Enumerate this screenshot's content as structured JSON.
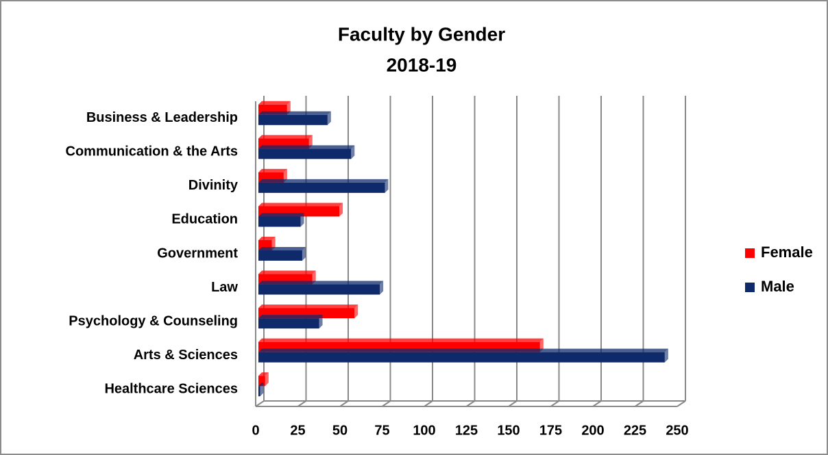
{
  "chart_data": {
    "type": "bar",
    "orientation": "horizontal",
    "title": "Faculty by Gender",
    "subtitle": "2018-19",
    "categories": [
      "Business & Leadership",
      "Communication & the Arts",
      "Divinity",
      "Education",
      "Government",
      "Law",
      "Psychology & Counseling",
      "Arts & Sciences",
      "Healthcare Sciences"
    ],
    "series": [
      {
        "name": "Female",
        "color": "#ff0000",
        "values": [
          17,
          30,
          15,
          48,
          8,
          32,
          57,
          167,
          4
        ]
      },
      {
        "name": "Male",
        "color": "#0f2a6b",
        "values": [
          41,
          55,
          75,
          25,
          26,
          72,
          36,
          241,
          1
        ]
      }
    ],
    "xlim": [
      0,
      250
    ],
    "xticks": [
      0,
      25,
      50,
      75,
      100,
      125,
      150,
      175,
      200,
      225,
      250
    ],
    "grid": true,
    "legend": "right"
  }
}
